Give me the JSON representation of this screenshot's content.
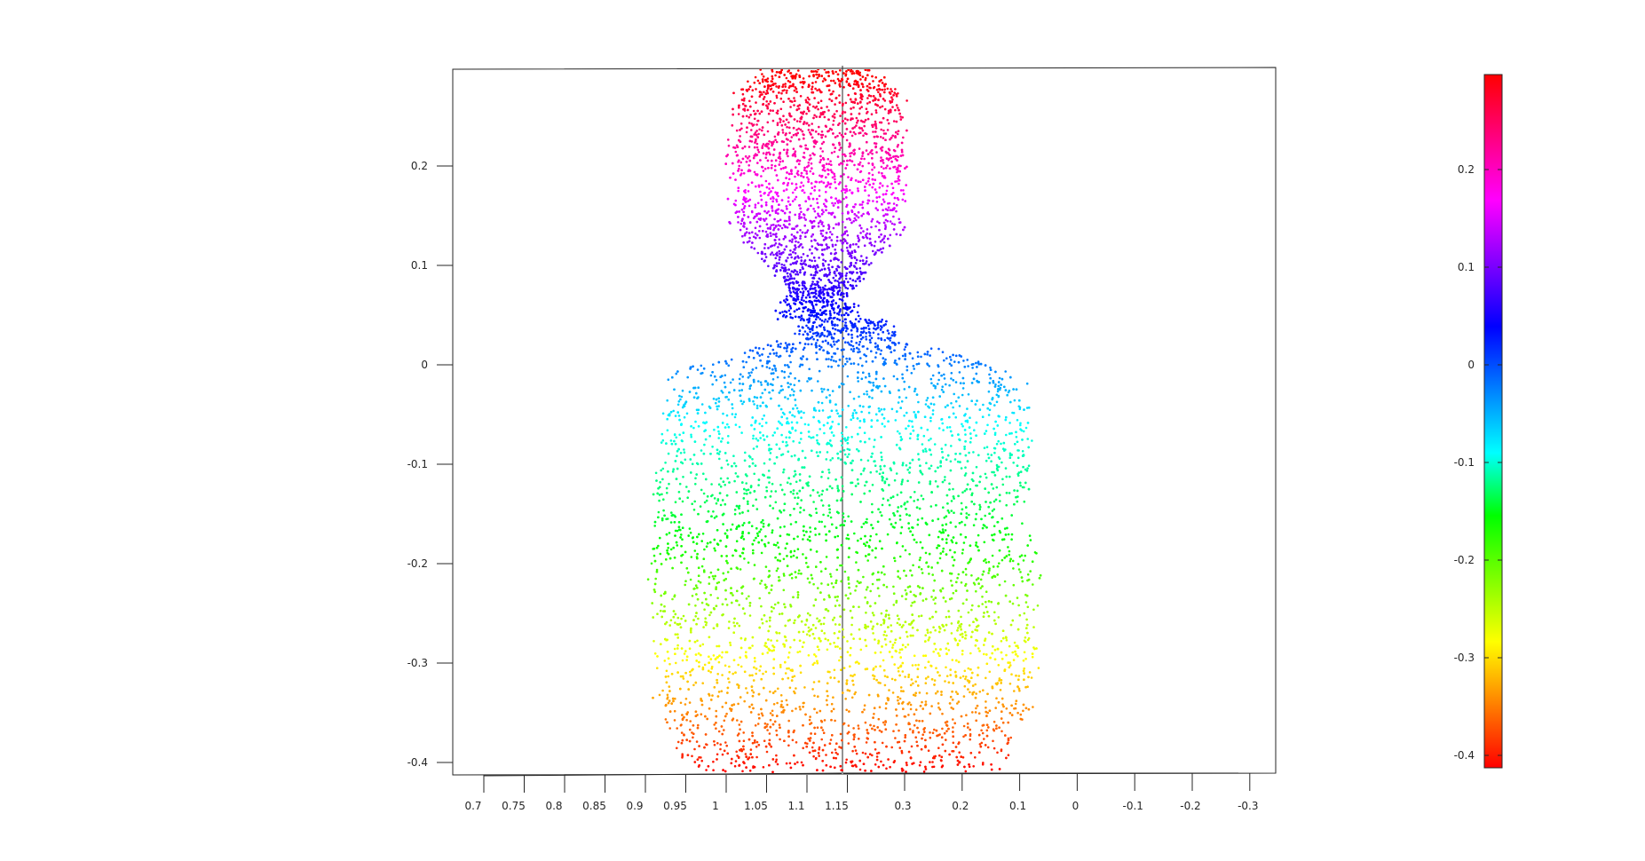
{
  "chart_data": {
    "type": "scatter",
    "title": "",
    "xlabel": "",
    "ylabel": "",
    "colormap": "hsv",
    "colorbar_position": "right",
    "grid": false,
    "ylim": [
      -0.41,
      0.29
    ],
    "clim": [
      -0.41,
      0.29
    ],
    "y_ticks": [
      "0.2",
      "0.1",
      "0",
      "-0.1",
      "-0.2",
      "-0.3",
      "-0.4"
    ],
    "x_ticks_left": [
      "0.7",
      "0.75",
      "0.8",
      "0.85",
      "0.9",
      "0.95",
      "1",
      "1.05",
      "1.1",
      "1.15"
    ],
    "x_ticks_right": [
      "0.3",
      "0.2",
      "0.1",
      "0",
      "-0.1",
      "-0.2",
      "-0.3"
    ],
    "colorbar_ticks": [
      "0.2",
      "0.1",
      "0",
      "-0.1",
      "-0.2",
      "-0.3",
      "-0.4"
    ],
    "colorbar_colors": [
      "#ff0000",
      "#ff7f00",
      "#ffff00",
      "#7fff00",
      "#00ff00",
      "#00ffff",
      "#0080ff",
      "#0000ff",
      "#8000ff",
      "#ff00ff",
      "#ff0080",
      "#ff0000"
    ],
    "axes_color": "#262626",
    "series": [
      {
        "shape": "head",
        "x": [
          1.12,
          1.08,
          1.16,
          1.1,
          1.14,
          1.06,
          1.18
        ],
        "y": [
          0.25,
          0.2,
          0.2,
          0.12,
          0.15,
          0.1,
          0.08
        ]
      },
      {
        "shape": "neck",
        "x": [
          1.1,
          1.15,
          1.2
        ],
        "y": [
          0.05,
          0.02,
          0.0
        ]
      },
      {
        "shape": "torso",
        "x": [
          0.95,
          1.0,
          1.05,
          1.1,
          1.15,
          1.2
        ],
        "y": [
          -0.05,
          -0.15,
          -0.25,
          -0.32,
          -0.38,
          -0.4
        ]
      }
    ]
  }
}
